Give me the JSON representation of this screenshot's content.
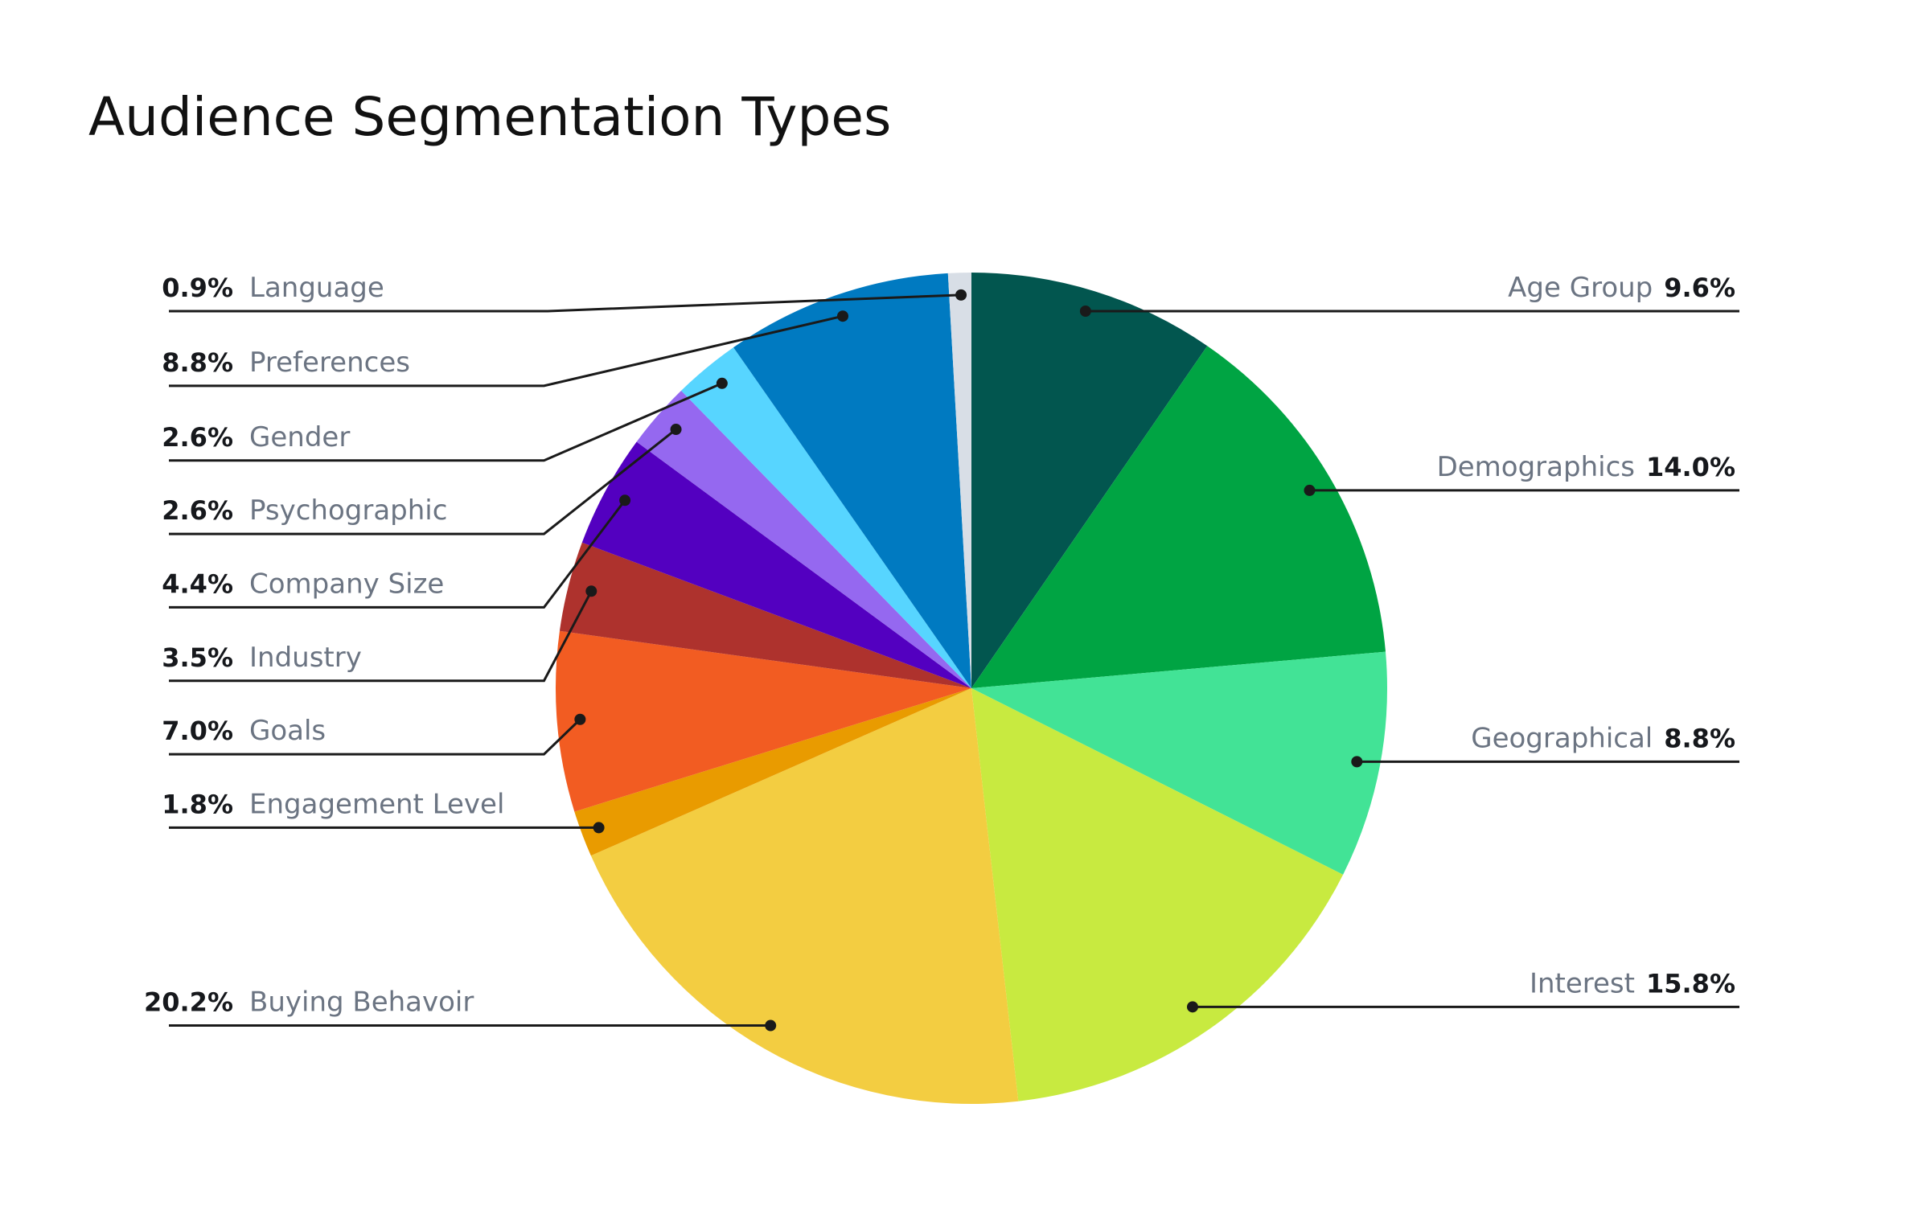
{
  "chart_data": {
    "type": "pie",
    "title": "Audience Segmentation Types",
    "start_angle": "top, clockwise",
    "slices": [
      {
        "label": "Age Group",
        "value": 9.6,
        "display": "9.6%",
        "color": "#02564F",
        "side": "right"
      },
      {
        "label": "Demographics",
        "value": 14.0,
        "display": "14.0%",
        "color": "#00A443",
        "side": "right"
      },
      {
        "label": "Geographical",
        "value": 8.8,
        "display": "8.8%",
        "color": "#42E396",
        "side": "right"
      },
      {
        "label": "Interest",
        "value": 15.8,
        "display": "15.8%",
        "color": "#C8EA40",
        "side": "right"
      },
      {
        "label": "Buying Behavoir",
        "value": 20.2,
        "display": "20.2%",
        "color": "#F3CD41",
        "side": "left"
      },
      {
        "label": "Engagement Level",
        "value": 1.8,
        "display": "1.8%",
        "color": "#E99B00",
        "side": "left"
      },
      {
        "label": "Goals",
        "value": 7.0,
        "display": "7.0%",
        "color": "#F25C22",
        "side": "left"
      },
      {
        "label": "Industry",
        "value": 3.5,
        "display": "3.5%",
        "color": "#AE322D",
        "side": "left"
      },
      {
        "label": "Company Size",
        "value": 4.4,
        "display": "4.4%",
        "color": "#5300C0",
        "side": "left"
      },
      {
        "label": "Psychographic",
        "value": 2.6,
        "display": "2.6%",
        "color": "#9568F0",
        "side": "left"
      },
      {
        "label": "Gender",
        "value": 2.6,
        "display": "2.6%",
        "color": "#57D5FF",
        "side": "left"
      },
      {
        "label": "Preferences",
        "value": 8.8,
        "display": "8.8%",
        "color": "#007AC1",
        "side": "left"
      },
      {
        "label": "Language",
        "value": 0.9,
        "display": "0.9%",
        "color": "#D8DEE6",
        "side": "left"
      }
    ],
    "legend": "leader-line labels beside slices"
  }
}
